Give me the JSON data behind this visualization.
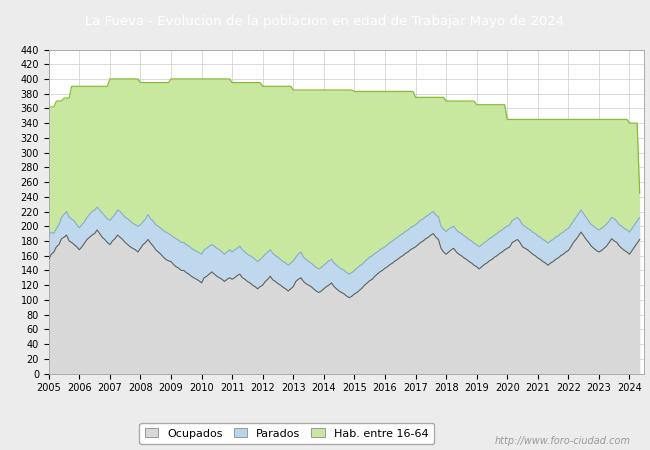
{
  "title": "La Fueva - Evolucion de la poblacion en edad de Trabajar Mayo de 2024",
  "title_bg": "#4472c4",
  "title_color": "#ffffff",
  "ylim": [
    0,
    440
  ],
  "yticks": [
    0,
    20,
    40,
    60,
    80,
    100,
    120,
    140,
    160,
    180,
    200,
    220,
    240,
    260,
    280,
    300,
    320,
    340,
    360,
    380,
    400,
    420,
    440
  ],
  "x_years": [
    2005,
    2006,
    2007,
    2008,
    2009,
    2010,
    2011,
    2012,
    2013,
    2014,
    2015,
    2016,
    2017,
    2018,
    2019,
    2020,
    2021,
    2022,
    2023,
    2024
  ],
  "background_color": "#ececec",
  "plot_bg": "#ffffff",
  "watermark": "http://www.foro-ciudad.com",
  "legend_labels": [
    "Ocupados",
    "Parados",
    "Hab. entre 16-64"
  ],
  "legend_colors": [
    "#d8d8d8",
    "#b8d4e8",
    "#c8e8a0"
  ],
  "hab_line_color": "#88bb33",
  "hab_fill_color": "#c8e8a0",
  "parados_line_color": "#88aad0",
  "parados_fill_color": "#c0d8ee",
  "ocupados_line_color": "#606060",
  "ocupados_fill_color": "#d8d8d8",
  "hab_16_64": [
    362,
    362,
    362,
    370,
    370,
    370,
    374,
    374,
    374,
    390,
    390,
    390,
    390,
    390,
    390,
    390,
    390,
    390,
    390,
    390,
    390,
    390,
    390,
    390,
    400,
    400,
    400,
    400,
    400,
    400,
    400,
    400,
    400,
    400,
    400,
    400,
    395,
    395,
    395,
    395,
    395,
    395,
    395,
    395,
    395,
    395,
    395,
    395,
    400,
    400,
    400,
    400,
    400,
    400,
    400,
    400,
    400,
    400,
    400,
    400,
    400,
    400,
    400,
    400,
    400,
    400,
    400,
    400,
    400,
    400,
    400,
    400,
    395,
    395,
    395,
    395,
    395,
    395,
    395,
    395,
    395,
    395,
    395,
    395,
    390,
    390,
    390,
    390,
    390,
    390,
    390,
    390,
    390,
    390,
    390,
    390,
    385,
    385,
    385,
    385,
    385,
    385,
    385,
    385,
    385,
    385,
    385,
    385,
    385,
    385,
    385,
    385,
    385,
    385,
    385,
    385,
    385,
    385,
    385,
    385,
    383,
    383,
    383,
    383,
    383,
    383,
    383,
    383,
    383,
    383,
    383,
    383,
    383,
    383,
    383,
    383,
    383,
    383,
    383,
    383,
    383,
    383,
    383,
    383,
    375,
    375,
    375,
    375,
    375,
    375,
    375,
    375,
    375,
    375,
    375,
    375,
    370,
    370,
    370,
    370,
    370,
    370,
    370,
    370,
    370,
    370,
    370,
    370,
    365,
    365,
    365,
    365,
    365,
    365,
    365,
    365,
    365,
    365,
    365,
    365,
    345,
    345,
    345,
    345,
    345,
    345,
    345,
    345,
    345,
    345,
    345,
    345,
    345,
    345,
    345,
    345,
    345,
    345,
    345,
    345,
    345,
    345,
    345,
    345,
    345,
    345,
    345,
    345,
    345,
    345,
    345,
    345,
    345,
    345,
    345,
    345,
    345,
    345,
    345,
    345,
    345,
    345,
    345,
    345,
    345,
    345,
    345,
    345,
    340,
    340,
    340,
    340,
    245
  ],
  "parados": [
    188,
    192,
    190,
    197,
    202,
    212,
    216,
    220,
    212,
    210,
    207,
    202,
    198,
    202,
    206,
    212,
    216,
    220,
    222,
    226,
    222,
    218,
    214,
    210,
    208,
    212,
    216,
    222,
    220,
    216,
    212,
    210,
    207,
    204,
    202,
    200,
    202,
    206,
    210,
    216,
    210,
    207,
    202,
    200,
    197,
    194,
    192,
    190,
    188,
    185,
    183,
    181,
    178,
    178,
    175,
    173,
    170,
    168,
    166,
    164,
    162,
    168,
    170,
    173,
    175,
    173,
    170,
    168,
    165,
    162,
    165,
    168,
    165,
    168,
    170,
    173,
    168,
    165,
    162,
    160,
    158,
    155,
    152,
    155,
    158,
    162,
    165,
    168,
    163,
    160,
    158,
    155,
    152,
    150,
    147,
    150,
    153,
    158,
    162,
    165,
    158,
    155,
    152,
    150,
    147,
    144,
    142,
    144,
    147,
    150,
    153,
    155,
    150,
    147,
    144,
    142,
    140,
    137,
    135,
    137,
    140,
    143,
    146,
    148,
    152,
    155,
    158,
    160,
    163,
    165,
    168,
    170,
    172,
    175,
    178,
    180,
    183,
    185,
    188,
    190,
    193,
    195,
    198,
    200,
    202,
    205,
    208,
    210,
    213,
    215,
    218,
    220,
    215,
    213,
    200,
    196,
    193,
    196,
    198,
    200,
    195,
    192,
    190,
    187,
    185,
    182,
    180,
    177,
    175,
    172,
    175,
    178,
    180,
    183,
    185,
    188,
    190,
    193,
    195,
    198,
    200,
    202,
    208,
    210,
    212,
    208,
    202,
    200,
    197,
    195,
    192,
    190,
    187,
    185,
    182,
    180,
    177,
    180,
    182,
    185,
    187,
    190,
    192,
    195,
    197,
    202,
    207,
    212,
    217,
    222,
    217,
    212,
    207,
    202,
    200,
    197,
    195,
    197,
    200,
    203,
    207,
    212,
    210,
    207,
    202,
    200,
    197,
    195,
    192,
    197,
    202,
    207,
    212
  ],
  "ocupados": [
    155,
    162,
    165,
    172,
    175,
    183,
    185,
    188,
    180,
    178,
    175,
    172,
    168,
    172,
    177,
    182,
    185,
    188,
    190,
    195,
    190,
    185,
    182,
    178,
    175,
    180,
    183,
    188,
    185,
    182,
    178,
    175,
    172,
    170,
    168,
    165,
    170,
    175,
    178,
    182,
    177,
    173,
    168,
    165,
    162,
    158,
    155,
    153,
    152,
    148,
    145,
    143,
    140,
    140,
    137,
    135,
    132,
    130,
    128,
    126,
    123,
    130,
    132,
    135,
    138,
    135,
    132,
    130,
    128,
    125,
    128,
    130,
    128,
    130,
    133,
    135,
    130,
    128,
    125,
    123,
    120,
    118,
    115,
    118,
    120,
    125,
    128,
    132,
    127,
    125,
    122,
    120,
    117,
    115,
    112,
    115,
    118,
    125,
    128,
    130,
    125,
    122,
    120,
    118,
    115,
    112,
    110,
    112,
    115,
    118,
    120,
    123,
    118,
    115,
    112,
    110,
    108,
    105,
    103,
    105,
    108,
    110,
    113,
    116,
    120,
    123,
    126,
    128,
    132,
    135,
    138,
    140,
    143,
    145,
    148,
    150,
    153,
    155,
    158,
    160,
    163,
    165,
    168,
    170,
    172,
    175,
    178,
    180,
    183,
    185,
    188,
    190,
    185,
    182,
    170,
    165,
    162,
    165,
    168,
    170,
    165,
    162,
    160,
    157,
    155,
    152,
    150,
    147,
    145,
    142,
    145,
    148,
    150,
    153,
    155,
    158,
    160,
    163,
    165,
    168,
    170,
    172,
    178,
    180,
    182,
    178,
    172,
    170,
    168,
    165,
    162,
    160,
    157,
    155,
    152,
    150,
    147,
    150,
    152,
    155,
    157,
    160,
    162,
    165,
    167,
    172,
    178,
    182,
    187,
    192,
    187,
    182,
    178,
    173,
    170,
    167,
    165,
    167,
    170,
    173,
    178,
    183,
    180,
    178,
    173,
    170,
    167,
    165,
    162,
    167,
    172,
    177,
    182
  ]
}
